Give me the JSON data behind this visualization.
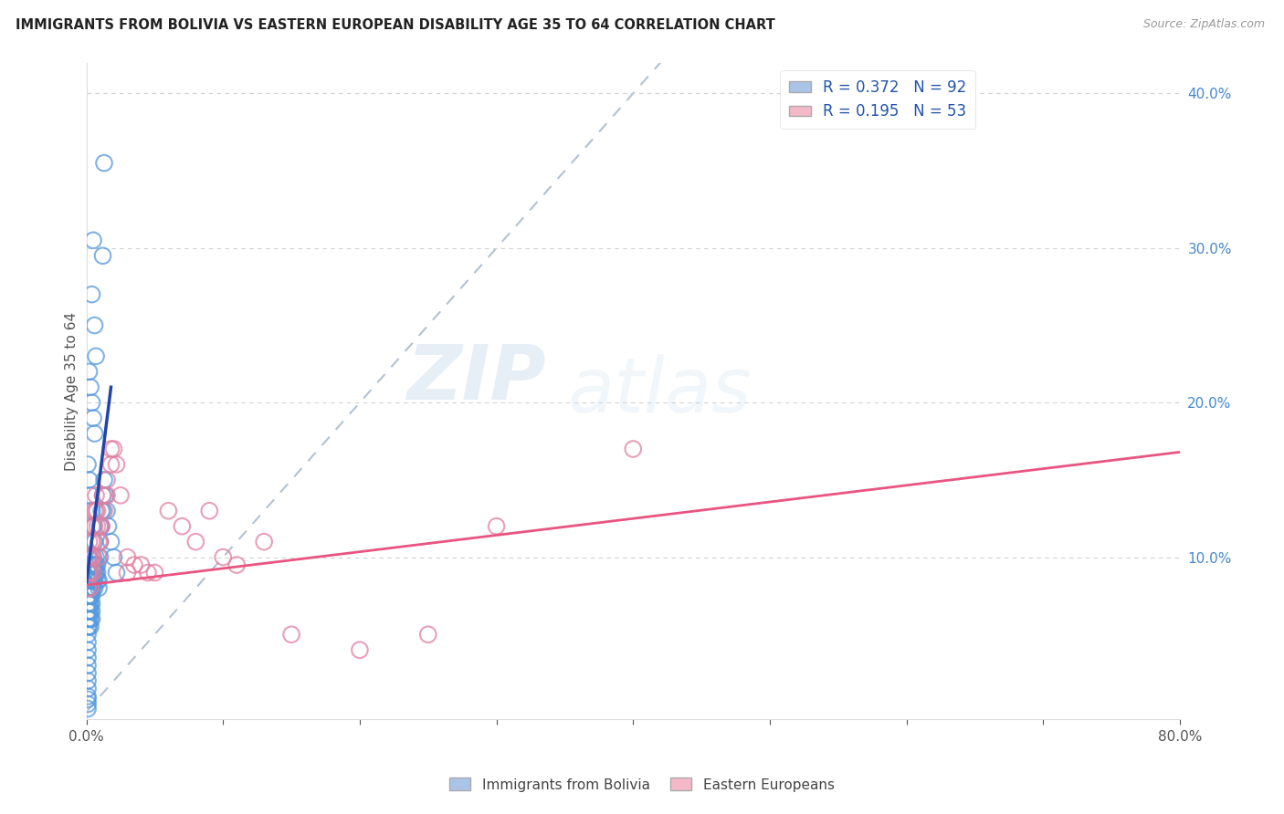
{
  "title": "IMMIGRANTS FROM BOLIVIA VS EASTERN EUROPEAN DISABILITY AGE 35 TO 64 CORRELATION CHART",
  "source": "Source: ZipAtlas.com",
  "ylabel": "Disability Age 35 to 64",
  "xlim": [
    0.0,
    0.8
  ],
  "ylim": [
    -0.005,
    0.42
  ],
  "yticks_right": [
    0.1,
    0.2,
    0.3,
    0.4
  ],
  "ytick_labels_right": [
    "10.0%",
    "20.0%",
    "30.0%",
    "40.0%"
  ],
  "grid_color": "#cccccc",
  "bg_color": "#ffffff",
  "blue_color": "#aac4e8",
  "blue_edge_color": "#5599dd",
  "blue_line_color": "#2244aa",
  "pink_color": "#f4b8c8",
  "pink_edge_color": "#e080a0",
  "pink_line_color": "#e85580",
  "ref_line_color": "#aabbcc",
  "legend_R1": "0.372",
  "legend_N1": "92",
  "legend_R2": "0.195",
  "legend_N2": "53",
  "label1": "Immigrants from Bolivia",
  "label2": "Eastern Europeans",
  "watermark_zip": "ZIP",
  "watermark_atlas": "atlas",
  "bolivia_x": [
    0.001,
    0.001,
    0.001,
    0.001,
    0.001,
    0.001,
    0.001,
    0.001,
    0.001,
    0.001,
    0.001,
    0.001,
    0.001,
    0.001,
    0.001,
    0.001,
    0.001,
    0.001,
    0.001,
    0.001,
    0.002,
    0.002,
    0.002,
    0.002,
    0.002,
    0.002,
    0.002,
    0.002,
    0.002,
    0.002,
    0.003,
    0.003,
    0.003,
    0.003,
    0.003,
    0.003,
    0.003,
    0.003,
    0.004,
    0.004,
    0.004,
    0.004,
    0.004,
    0.004,
    0.005,
    0.005,
    0.005,
    0.005,
    0.005,
    0.006,
    0.006,
    0.006,
    0.006,
    0.007,
    0.007,
    0.007,
    0.008,
    0.008,
    0.008,
    0.009,
    0.009,
    0.01,
    0.01,
    0.01,
    0.011,
    0.011,
    0.012,
    0.012,
    0.013,
    0.014,
    0.015,
    0.016,
    0.018,
    0.02,
    0.022,
    0.001,
    0.002,
    0.003,
    0.004,
    0.005,
    0.006,
    0.002,
    0.003,
    0.004,
    0.005,
    0.006,
    0.013,
    0.005,
    0.012,
    0.004,
    0.006,
    0.007
  ],
  "bolivia_y": [
    0.09,
    0.085,
    0.08,
    0.075,
    0.07,
    0.065,
    0.06,
    0.055,
    0.05,
    0.045,
    0.04,
    0.035,
    0.03,
    0.025,
    0.02,
    0.015,
    0.01,
    0.008,
    0.005,
    0.002,
    0.1,
    0.095,
    0.09,
    0.085,
    0.08,
    0.075,
    0.07,
    0.065,
    0.06,
    0.055,
    0.09,
    0.085,
    0.08,
    0.075,
    0.07,
    0.065,
    0.06,
    0.055,
    0.085,
    0.08,
    0.075,
    0.07,
    0.065,
    0.06,
    0.1,
    0.095,
    0.09,
    0.085,
    0.08,
    0.095,
    0.09,
    0.085,
    0.08,
    0.1,
    0.095,
    0.09,
    0.095,
    0.09,
    0.085,
    0.085,
    0.08,
    0.12,
    0.11,
    0.1,
    0.13,
    0.12,
    0.14,
    0.13,
    0.15,
    0.14,
    0.13,
    0.12,
    0.11,
    0.1,
    0.09,
    0.16,
    0.15,
    0.14,
    0.13,
    0.12,
    0.11,
    0.22,
    0.21,
    0.2,
    0.19,
    0.18,
    0.355,
    0.305,
    0.295,
    0.27,
    0.25,
    0.23
  ],
  "eastern_x": [
    0.001,
    0.001,
    0.001,
    0.002,
    0.002,
    0.002,
    0.003,
    0.003,
    0.003,
    0.004,
    0.004,
    0.004,
    0.005,
    0.005,
    0.005,
    0.006,
    0.006,
    0.007,
    0.007,
    0.008,
    0.008,
    0.009,
    0.009,
    0.01,
    0.01,
    0.011,
    0.012,
    0.013,
    0.015,
    0.015,
    0.018,
    0.018,
    0.02,
    0.022,
    0.025,
    0.03,
    0.03,
    0.035,
    0.04,
    0.045,
    0.05,
    0.06,
    0.07,
    0.08,
    0.09,
    0.1,
    0.11,
    0.13,
    0.3,
    0.4,
    0.15,
    0.2,
    0.25
  ],
  "eastern_y": [
    0.1,
    0.09,
    0.08,
    0.11,
    0.1,
    0.09,
    0.1,
    0.09,
    0.08,
    0.12,
    0.11,
    0.1,
    0.11,
    0.1,
    0.09,
    0.13,
    0.12,
    0.14,
    0.13,
    0.13,
    0.12,
    0.11,
    0.1,
    0.12,
    0.11,
    0.12,
    0.14,
    0.13,
    0.15,
    0.14,
    0.17,
    0.16,
    0.17,
    0.16,
    0.14,
    0.1,
    0.09,
    0.095,
    0.095,
    0.09,
    0.09,
    0.13,
    0.12,
    0.11,
    0.13,
    0.1,
    0.095,
    0.11,
    0.12,
    0.17,
    0.05,
    0.04,
    0.05
  ],
  "bolivia_trend_x": [
    0.0,
    0.018
  ],
  "bolivia_trend_y": [
    0.083,
    0.21
  ],
  "eastern_trend_x": [
    0.0,
    0.8
  ],
  "eastern_trend_y": [
    0.082,
    0.168
  ],
  "ref_line_x": [
    0.0,
    0.42
  ],
  "ref_line_y": [
    0.0,
    0.42
  ]
}
